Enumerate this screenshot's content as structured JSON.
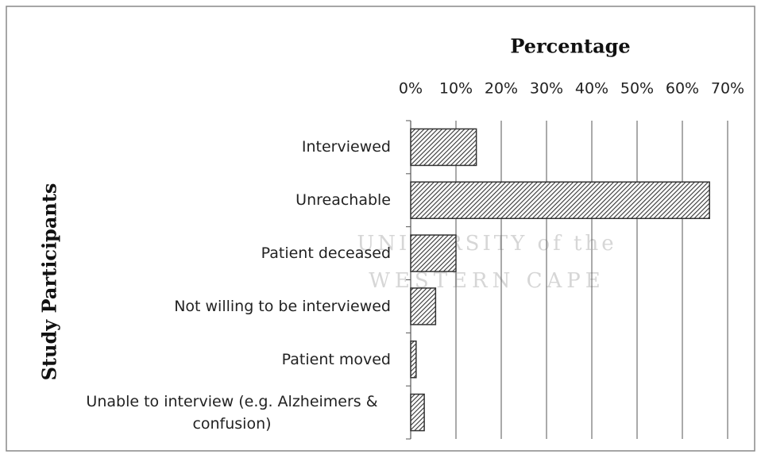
{
  "chart_data": {
    "type": "bar",
    "orientation": "horizontal",
    "title": "Percentage",
    "y_label": "Study Participants",
    "watermark": [
      "UNIVERSITY of the",
      "WESTERN CAPE"
    ],
    "categories": [
      "Interviewed",
      "Unreachable",
      "Patient deceased",
      "Not willing to be interviewed",
      "Patient moved",
      "Unable to interview (e.g. Alzheimers & confusion)"
    ],
    "values": [
      14.5,
      66,
      10,
      5.5,
      1.2,
      3
    ],
    "color": "#333333",
    "xlim": [
      0,
      70
    ],
    "xticks": [
      {
        "value": 0,
        "label": "0%"
      },
      {
        "value": 10,
        "label": "10%"
      },
      {
        "value": 20,
        "label": "20%"
      },
      {
        "value": 30,
        "label": "30%"
      },
      {
        "value": 40,
        "label": "40%"
      },
      {
        "value": 50,
        "label": "50%"
      },
      {
        "value": 60,
        "label": "60%"
      },
      {
        "value": 70,
        "label": "70%"
      }
    ],
    "grid": true
  }
}
